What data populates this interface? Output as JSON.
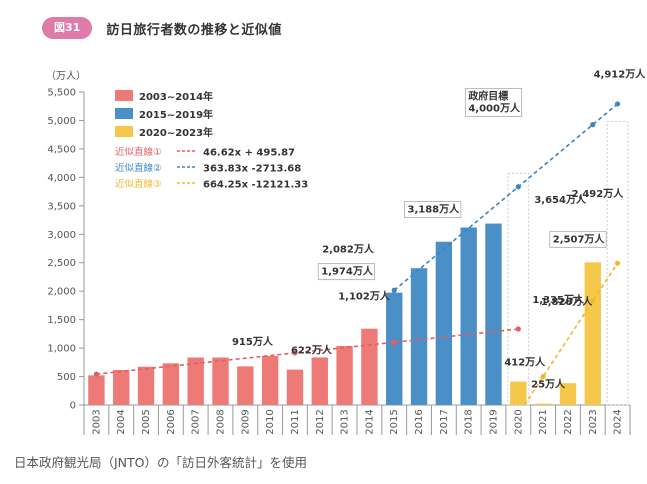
{
  "header": {
    "badge": "図31",
    "title": "訪日旅行者数の推移と近似値"
  },
  "source_note": "日本政府観光局（JNTO）の「訪日外客統計」を使用",
  "chart_data": {
    "type": "bar",
    "title": "訪日旅行者数の推移と近似値",
    "ylabel": "（万人）",
    "xlabel": "",
    "ylim": [
      0,
      5500
    ],
    "yticks": [
      0,
      500,
      1000,
      1500,
      2000,
      2500,
      3000,
      3500,
      4000,
      4500,
      5000,
      5500
    ],
    "ytick_labels": [
      "0",
      "500",
      "1,000",
      "1,500",
      "2,000",
      "2,500",
      "3,000",
      "3,500",
      "4,000",
      "4,500",
      "5,000",
      "5,500"
    ],
    "categories": [
      "2003",
      "2004",
      "2005",
      "2006",
      "2007",
      "2008",
      "2009",
      "2010",
      "2011",
      "2012",
      "2013",
      "2014",
      "2015",
      "2016",
      "2017",
      "2018",
      "2019",
      "2020",
      "2021",
      "2022",
      "2023",
      "2024"
    ],
    "values": [
      521,
      614,
      673,
      733,
      835,
      835,
      679,
      861,
      622,
      836,
      1036,
      1341,
      1974,
      2404,
      2869,
      3119,
      3188,
      412,
      25,
      383,
      2507,
      null
    ],
    "colors": {
      "period1": "#ee7a78",
      "period2": "#4a8fc6",
      "period3": "#f5c84c"
    },
    "series": [
      {
        "name": "2003~2014年",
        "color_key": "period1",
        "start": "2003",
        "end": "2014"
      },
      {
        "name": "2015~2019年",
        "color_key": "period2",
        "start": "2015",
        "end": "2019"
      },
      {
        "name": "2020~2023年",
        "color_key": "period3",
        "start": "2020",
        "end": "2023"
      }
    ],
    "trendlines": [
      {
        "name": "近似直線①",
        "equation": "46.62x + 495.87",
        "slope": 46.62,
        "intercept": 495.87,
        "x_start": 1,
        "x_end": 18,
        "color": "#e06060",
        "from": "2003",
        "to": "2020"
      },
      {
        "name": "近似直線②",
        "equation": "363.83x -2713.68",
        "slope": 363.83,
        "intercept": -2713.68,
        "x_start": 13,
        "x_end": 22,
        "color": "#3b85c0",
        "from": "2015",
        "to": "2024"
      },
      {
        "name": "近似直線③",
        "equation": "664.25x -12121.33",
        "slope": 664.25,
        "intercept": -12121.33,
        "x_start": 18.25,
        "x_end": 22,
        "color": "#f0b830",
        "from": "2020",
        "to": "2024"
      }
    ],
    "legend_position": "top-left",
    "annotations": [
      {
        "text": "915万人",
        "year": "2011",
        "value": 915
      },
      {
        "text": "622万人",
        "year": "2011",
        "value": 622
      },
      {
        "text": "1,102万人",
        "year": "2015",
        "value": 1102
      },
      {
        "text": "1,974万人",
        "year": "2015",
        "value": 1974
      },
      {
        "text": "2,082万人",
        "year": "2015",
        "value": 2082
      },
      {
        "text": "3,188万人",
        "year": "2019",
        "value": 3188
      },
      {
        "text": "政府目標\n4,000万人",
        "year": "2020",
        "value": 4000
      },
      {
        "text": "3,654万人",
        "year": "2020",
        "value": 3654
      },
      {
        "text": "4,912万人",
        "year": "2024",
        "value": 4912
      },
      {
        "text": "1,335万人",
        "year": "2020",
        "value": 1335
      },
      {
        "text": "1,828万人",
        "year": "2023",
        "value": 1828
      },
      {
        "text": "412万人",
        "year": "2020",
        "value": 412
      },
      {
        "text": "25万人",
        "year": "2021",
        "value": 25
      },
      {
        "text": "2,507万人",
        "year": "2023",
        "value": 2507
      },
      {
        "text": "2,492万人",
        "year": "2024",
        "value": 2492
      }
    ],
    "grid": false
  }
}
